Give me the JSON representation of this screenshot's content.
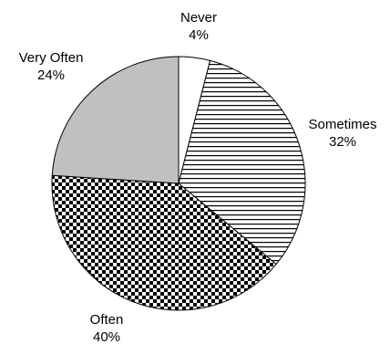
{
  "chart_data": {
    "type": "pie",
    "title": "",
    "slices": [
      {
        "label": "Never",
        "value": 4,
        "value_label": "4%",
        "pattern": "white"
      },
      {
        "label": "Sometimes",
        "value": 32,
        "value_label": "32%",
        "pattern": "horizontal-stripes"
      },
      {
        "label": "Often",
        "value": 40,
        "value_label": "40%",
        "pattern": "checkerboard"
      },
      {
        "label": "Very Often",
        "value": 24,
        "value_label": "24%",
        "pattern": "solid-gray"
      }
    ],
    "start_angle": "12 o'clock",
    "direction": "clockwise",
    "legend": "none",
    "colors": {
      "outline": "#000000",
      "white": "#ffffff",
      "gray": "#c0c0c0",
      "pattern_ink": "#000000"
    }
  }
}
